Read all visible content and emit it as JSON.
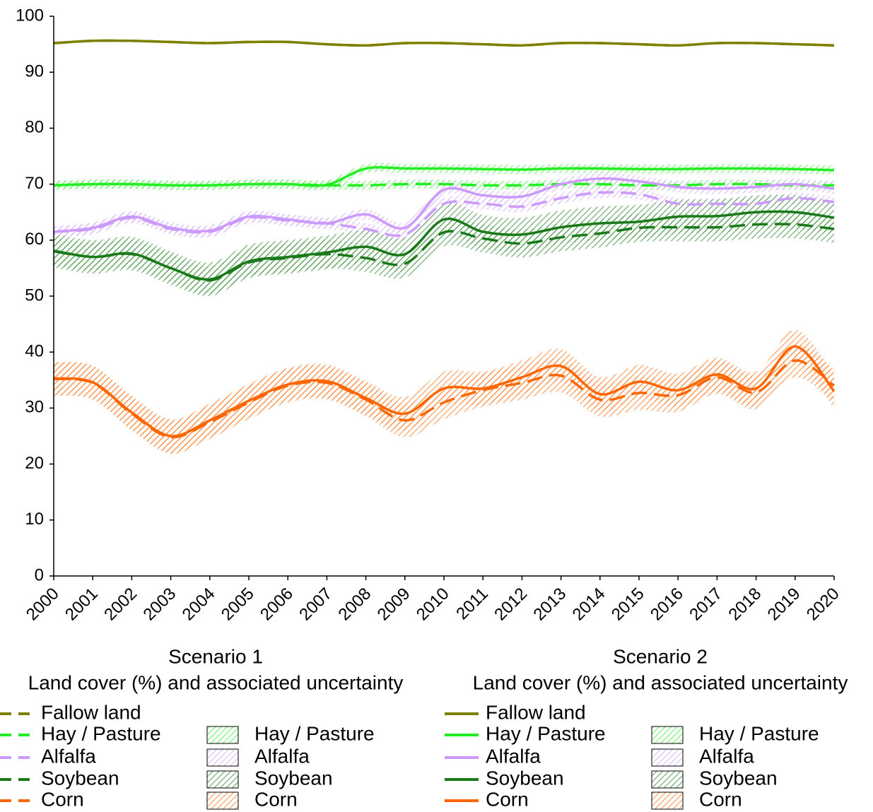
{
  "chart_data": {
    "type": "line",
    "x": [
      2000,
      2001,
      2002,
      2003,
      2004,
      2005,
      2006,
      2007,
      2008,
      2009,
      2010,
      2011,
      2012,
      2013,
      2014,
      2015,
      2016,
      2017,
      2018,
      2019,
      2020
    ],
    "xlim": [
      2000,
      2020
    ],
    "xticks": [
      2000,
      2001,
      2002,
      2003,
      2004,
      2005,
      2006,
      2007,
      2008,
      2009,
      2010,
      2011,
      2012,
      2013,
      2014,
      2015,
      2016,
      2017,
      2018,
      2019,
      2020
    ],
    "ylim": [
      0,
      100
    ],
    "yticks": [
      0,
      10,
      20,
      30,
      40,
      50,
      60,
      70,
      80,
      90,
      100
    ],
    "scenarios": [
      {
        "title": "Scenario 1",
        "subtitle": "Land cover (%) and associated uncertainty",
        "line_style": "dashed",
        "series": [
          {
            "name": "Fallow land",
            "color": "#808000",
            "values": [
              95.2,
              95.6,
              95.6,
              95.4,
              95.2,
              95.4,
              95.4,
              95,
              94.8,
              95.2,
              95.2,
              95,
              94.8,
              95.2,
              95.2,
              95,
              94.8,
              95.2,
              95.2,
              95,
              94.8
            ]
          },
          {
            "name": "Hay / Pasture",
            "color": "#22ee22",
            "values": [
              69.8,
              70,
              70,
              69.8,
              69.8,
              70,
              70,
              69.8,
              69.8,
              70,
              70,
              69.8,
              69.8,
              70,
              70,
              69.8,
              69.8,
              70,
              70,
              69.8,
              69.8
            ]
          },
          {
            "name": "Alfalfa",
            "color": "#cc99ff",
            "values": [
              61.5,
              62,
              64,
              62,
              61.5,
              64,
              63.5,
              63,
              62,
              61,
              66.5,
              66.5,
              66,
              67.5,
              68.5,
              68.2,
              66.5,
              66.5,
              66.5,
              67.5,
              66.8
            ]
          },
          {
            "name": "Soybean",
            "color": "#1a7a1a",
            "values": [
              58,
              57,
              57.5,
              55,
              52.8,
              56,
              56.8,
              57.5,
              56.8,
              55.8,
              61.4,
              60.3,
              59.4,
              60.5,
              61.2,
              62.2,
              62.3,
              62.3,
              62.8,
              62.8,
              62
            ]
          },
          {
            "name": "Corn",
            "color": "#ff6600",
            "values": [
              35.2,
              34.5,
              29,
              24.8,
              27.5,
              31,
              34,
              34.5,
              31.5,
              27.8,
              31,
              33.2,
              34.5,
              35.8,
              31.5,
              32.7,
              32.3,
              35.5,
              32.8,
              38.5,
              34
            ]
          }
        ],
        "bands": [
          {
            "name": "Hay / Pasture",
            "color": "#22ee22",
            "lower": [
              69,
              69.2,
              69.2,
              69,
              69,
              69.2,
              69.2,
              69,
              69,
              69.2,
              69.2,
              69,
              69,
              69.2,
              69.2,
              69,
              69,
              69.2,
              69.2,
              69,
              69
            ],
            "upper": [
              70.6,
              70.8,
              70.8,
              70.6,
              70.6,
              70.8,
              70.8,
              70.6,
              70.6,
              70.8,
              70.8,
              70.6,
              70.6,
              70.8,
              70.8,
              70.6,
              70.6,
              70.8,
              70.8,
              70.6,
              70.6
            ]
          },
          {
            "name": "Alfalfa",
            "color": "#cc99ff",
            "lower": [
              60.5,
              61,
              63,
              61,
              60.5,
              63,
              62.5,
              62,
              61,
              60,
              65.5,
              65.5,
              65,
              66.5,
              67.5,
              67.2,
              65.5,
              65.5,
              65.5,
              66.5,
              65.8
            ],
            "upper": [
              62.5,
              63,
              65,
              63,
              62.5,
              65,
              64.5,
              64,
              63,
              62,
              67.5,
              67.5,
              67,
              68.5,
              69.5,
              69.2,
              67.5,
              67.5,
              67.5,
              68.5,
              67.8
            ]
          },
          {
            "name": "Soybean",
            "color": "#1a7a1a",
            "lower": [
              55.5,
              54.5,
              55,
              52.5,
              50.3,
              53.5,
              54.3,
              55,
              54.3,
              53.3,
              58.9,
              57.8,
              56.9,
              58,
              58.7,
              59.7,
              59.8,
              59.8,
              60.3,
              60.3,
              59.5
            ],
            "upper": [
              60.5,
              59.5,
              60,
              57.5,
              55.3,
              58.5,
              59.3,
              60,
              59.3,
              58.3,
              63.9,
              62.8,
              61.9,
              63,
              63.7,
              64.7,
              64.8,
              64.8,
              65.3,
              65.3,
              64.5
            ]
          },
          {
            "name": "Corn",
            "color": "#ff6600",
            "lower": [
              32.2,
              31.5,
              26,
              21.8,
              24.5,
              28,
              31,
              31.5,
              28.5,
              24.8,
              28,
              30.2,
              31.5,
              32.8,
              28.5,
              29.7,
              29.3,
              32.5,
              29.8,
              35.5,
              31
            ],
            "upper": [
              38.2,
              37.5,
              32,
              27.8,
              30.5,
              34,
              37,
              37.5,
              34.5,
              30.8,
              34,
              36.2,
              37.5,
              38.8,
              34.5,
              35.7,
              35.3,
              38.5,
              35.8,
              41.5,
              37
            ]
          }
        ]
      },
      {
        "title": "Scenario 2",
        "subtitle": "Land cover (%) and associated uncertainty",
        "line_style": "solid",
        "series": [
          {
            "name": "Fallow land",
            "color": "#808000",
            "values": [
              95.2,
              95.6,
              95.6,
              95.4,
              95.2,
              95.4,
              95.4,
              95,
              94.8,
              95.2,
              95.2,
              95,
              94.8,
              95.2,
              95.2,
              95,
              94.8,
              95.2,
              95.2,
              95,
              94.8
            ]
          },
          {
            "name": "Hay / Pasture",
            "color": "#22ee22",
            "values": [
              69.8,
              70,
              70,
              69.8,
              69.8,
              70,
              70,
              69.9,
              72.8,
              72.8,
              72.8,
              72.7,
              72.6,
              72.8,
              72.8,
              72.7,
              72.7,
              72.8,
              72.8,
              72.7,
              72.5
            ]
          },
          {
            "name": "Alfalfa",
            "color": "#cc99ff",
            "values": [
              61.5,
              62.2,
              64.2,
              62.2,
              61.7,
              64.2,
              63.7,
              63,
              64.6,
              62.2,
              69,
              68,
              67.8,
              70,
              71,
              70.5,
              69.5,
              69.2,
              69.5,
              70,
              69.2
            ]
          },
          {
            "name": "Soybean",
            "color": "#1a7a1a",
            "values": [
              58.1,
              57,
              57.6,
              55,
              53,
              56.2,
              57,
              57.8,
              58.8,
              57.5,
              63.7,
              61.5,
              61,
              62.3,
              63,
              63.3,
              64.2,
              64.3,
              65,
              65,
              64
            ]
          },
          {
            "name": "Corn",
            "color": "#ff6600",
            "values": [
              35.3,
              34.6,
              29.2,
              25,
              27.8,
              31.3,
              34.2,
              34.8,
              31.8,
              29,
              33.5,
              33.5,
              35.5,
              37.5,
              32.5,
              34.7,
              33.2,
              36,
              33.5,
              41,
              33
            ]
          }
        ],
        "bands": [
          {
            "name": "Hay / Pasture",
            "color": "#22ee22",
            "lower": [
              69,
              69.2,
              69.2,
              69,
              69,
              69.2,
              69.2,
              69.1,
              72,
              72,
              72,
              71.9,
              71.8,
              72,
              72,
              71.9,
              71.9,
              72,
              72,
              71.9,
              71.7
            ],
            "upper": [
              70.6,
              70.8,
              70.8,
              70.6,
              70.6,
              70.8,
              70.8,
              70.7,
              73.6,
              73.6,
              73.6,
              73.5,
              73.4,
              73.6,
              73.6,
              73.5,
              73.5,
              73.6,
              73.6,
              73.5,
              73.3
            ]
          },
          {
            "name": "Alfalfa",
            "color": "#cc99ff",
            "lower": [
              60.5,
              61.2,
              63.2,
              61.2,
              60.7,
              63.2,
              62.7,
              62,
              63.6,
              61.2,
              68,
              67,
              66.8,
              69,
              70,
              69.5,
              68.5,
              68.2,
              68.5,
              69,
              68.2
            ],
            "upper": [
              62.5,
              63.2,
              65.2,
              63.2,
              62.7,
              65.2,
              64.7,
              64,
              65.6,
              63.2,
              70,
              69,
              68.8,
              71,
              72,
              71.5,
              70.5,
              70.2,
              70.5,
              71,
              70.2
            ]
          },
          {
            "name": "Soybean",
            "color": "#1a7a1a",
            "lower": [
              55.1,
              54,
              54.6,
              52,
              50,
              53.2,
              54,
              54.8,
              55.8,
              54.5,
              60.7,
              58.5,
              58,
              59.3,
              60,
              60.3,
              61.2,
              61.3,
              62,
              62,
              61
            ],
            "upper": [
              61.1,
              60,
              60.6,
              58,
              56,
              59.2,
              60,
              60.8,
              61.8,
              60.5,
              66.7,
              64.5,
              64,
              65.3,
              66,
              66.3,
              67.2,
              67.3,
              68,
              68,
              67
            ]
          },
          {
            "name": "Corn",
            "color": "#ff6600",
            "lower": [
              32.3,
              31.6,
              26.2,
              22,
              24.8,
              28.3,
              31.2,
              31.8,
              28.8,
              26,
              30.5,
              30.5,
              32.5,
              34.5,
              29.5,
              31.7,
              30.2,
              33,
              30.5,
              38,
              30
            ],
            "upper": [
              38.3,
              37.6,
              32.2,
              28,
              30.8,
              34.3,
              37.2,
              37.8,
              34.8,
              32,
              36.5,
              36.5,
              38.5,
              40.5,
              35.5,
              37.7,
              36.2,
              39,
              36.5,
              44,
              36
            ]
          }
        ]
      }
    ]
  }
}
